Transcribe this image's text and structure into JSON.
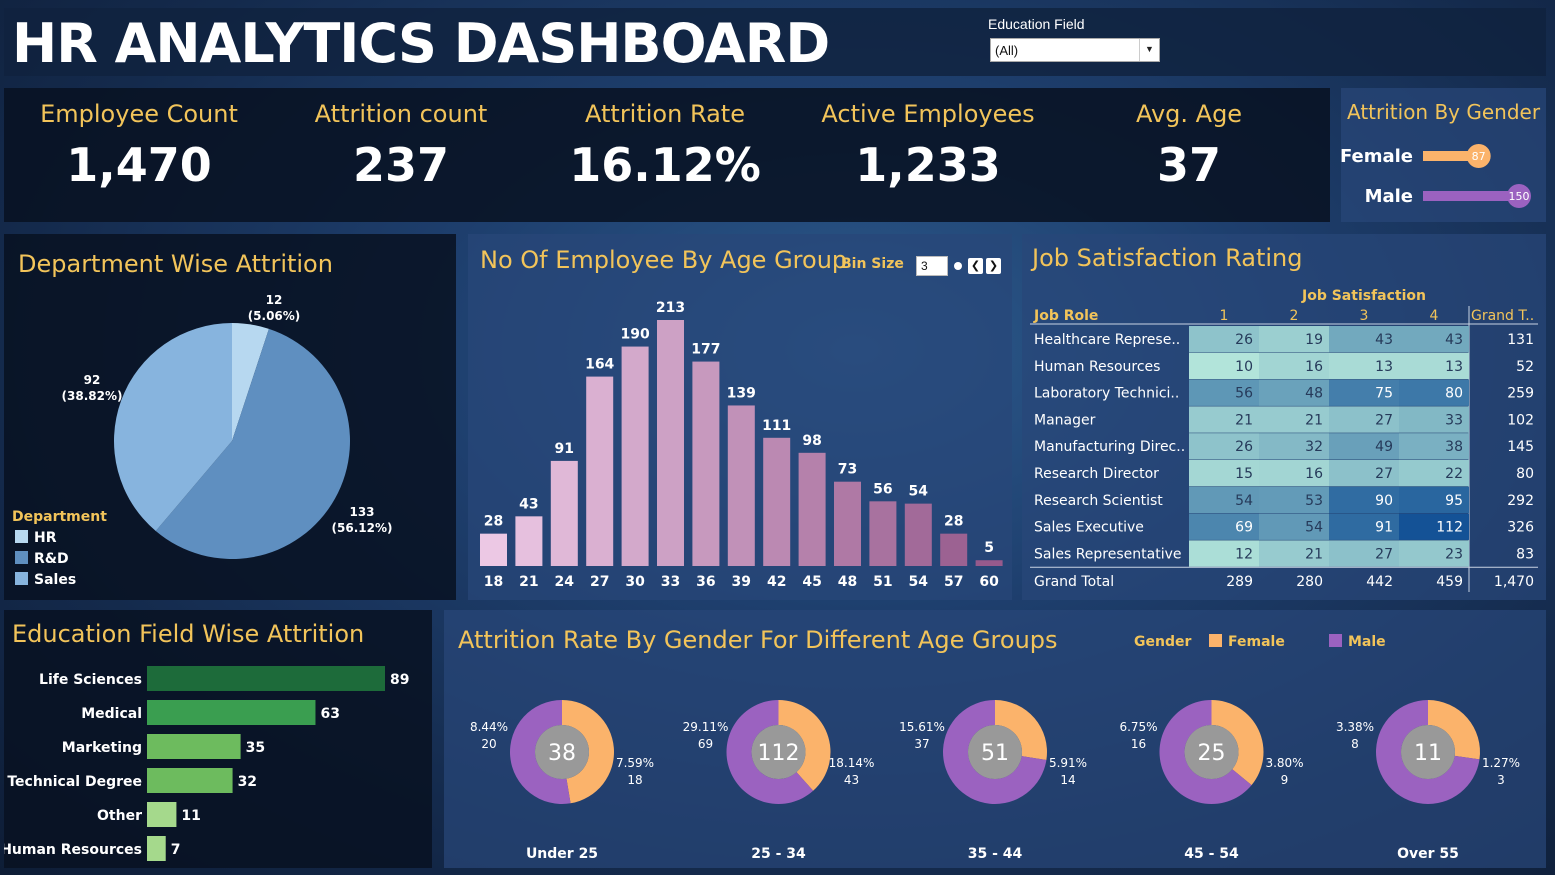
{
  "header": {
    "title": "HR ANALYTICS DASHBOARD",
    "filter_label": "Education Field",
    "filter_value": "(All)"
  },
  "kpis": [
    {
      "label": "Employee Count",
      "value": "1,470"
    },
    {
      "label": "Attrition count",
      "value": "237"
    },
    {
      "label": "Attrition Rate",
      "value": "16.12%"
    },
    {
      "label": "Active Employees",
      "value": "1,233"
    },
    {
      "label": "Avg. Age",
      "value": "37"
    }
  ],
  "colors": {
    "accent": "#f2c45a",
    "female": "#fbb36b",
    "male": "#9b62c0",
    "hr": "#b7d8f0",
    "rnd": "#5f8fc0",
    "sales": "#87b4de"
  },
  "chart_data": [
    {
      "id": "attrition-by-gender",
      "type": "bar",
      "title": "Attrition By Gender",
      "categories": [
        "Female",
        "Male"
      ],
      "values": [
        87,
        150
      ]
    },
    {
      "id": "department-wise-attrition",
      "type": "pie",
      "title": "Department Wise Attrition",
      "legend_title": "Department",
      "legend_position": "bottom-left",
      "slices": [
        {
          "name": "HR",
          "value": 12,
          "pct": "(5.06%)"
        },
        {
          "name": "R&D",
          "value": 133,
          "pct": "(56.12%)"
        },
        {
          "name": "Sales",
          "value": 92,
          "pct": "(38.82%)"
        }
      ]
    },
    {
      "id": "employees-by-age-group",
      "type": "bar",
      "title": "No Of Employee By Age Group",
      "control_label": "Bin Size",
      "control_value": "3",
      "categories": [
        "18",
        "21",
        "24",
        "27",
        "30",
        "33",
        "36",
        "39",
        "42",
        "45",
        "48",
        "51",
        "54",
        "57",
        "60"
      ],
      "values": [
        28,
        43,
        91,
        164,
        190,
        213,
        177,
        139,
        111,
        98,
        73,
        56,
        54,
        28,
        5
      ],
      "ylim": [
        0,
        213
      ]
    },
    {
      "id": "job-satisfaction-rating",
      "type": "heatmap",
      "title": "Job Satisfaction Rating",
      "col_group_label": "Job Satisfaction",
      "row_header": "Job Role",
      "columns": [
        "1",
        "2",
        "3",
        "4"
      ],
      "total_col_label": "Grand T..",
      "rows": [
        {
          "role": "Healthcare Represe..",
          "values": [
            26,
            19,
            43,
            43
          ],
          "total": "131"
        },
        {
          "role": "Human Resources",
          "values": [
            10,
            16,
            13,
            13
          ],
          "total": "52"
        },
        {
          "role": "Laboratory Technici..",
          "values": [
            56,
            48,
            75,
            80
          ],
          "total": "259"
        },
        {
          "role": "Manager",
          "values": [
            21,
            21,
            27,
            33
          ],
          "total": "102"
        },
        {
          "role": "Manufacturing Direc..",
          "values": [
            26,
            32,
            49,
            38
          ],
          "total": "145"
        },
        {
          "role": "Research Director",
          "values": [
            15,
            16,
            27,
            22
          ],
          "total": "80"
        },
        {
          "role": "Research Scientist",
          "values": [
            54,
            53,
            90,
            95
          ],
          "total": "292"
        },
        {
          "role": "Sales Executive",
          "values": [
            69,
            54,
            91,
            112
          ],
          "total": "326"
        },
        {
          "role": "Sales Representative",
          "values": [
            12,
            21,
            27,
            23
          ],
          "total": "83"
        }
      ],
      "grand_total": {
        "label": "Grand Total",
        "values": [
          "289",
          "280",
          "442",
          "459"
        ],
        "total": "1,470"
      }
    },
    {
      "id": "education-field-wise-attrition",
      "type": "bar",
      "title": "Education Field Wise Attrition",
      "categories": [
        "Life Sciences",
        "Medical",
        "Marketing",
        "Technical Degree",
        "Other",
        "Human Resources"
      ],
      "values": [
        89,
        63,
        35,
        32,
        11,
        7
      ],
      "colors": [
        "#1d6b3a",
        "#3a9e50",
        "#6dbb5e",
        "#6dbb5e",
        "#a5d98c",
        "#a5d98c"
      ]
    },
    {
      "id": "attrition-rate-by-gender-age",
      "type": "pie",
      "title": "Attrition Rate By Gender For Different Age Groups",
      "legend_title": "Gender",
      "legend": [
        "Female",
        "Male"
      ],
      "legend_position": "top-right",
      "groups": [
        {
          "label": "Under 25",
          "total": "38",
          "female": 18,
          "female_pct": "7.59%",
          "male": 20,
          "male_pct": "8.44%"
        },
        {
          "label": "25 - 34",
          "total": "112",
          "female": 43,
          "female_pct": "18.14%",
          "male": 69,
          "male_pct": "29.11%"
        },
        {
          "label": "35 - 44",
          "total": "51",
          "female": 14,
          "female_pct": "5.91%",
          "male": 37,
          "male_pct": "15.61%"
        },
        {
          "label": "45 - 54",
          "total": "25",
          "female": 9,
          "female_pct": "3.80%",
          "male": 16,
          "male_pct": "6.75%"
        },
        {
          "label": "Over 55",
          "total": "11",
          "female": 3,
          "female_pct": "1.27%",
          "male": 8,
          "male_pct": "3.38%"
        }
      ]
    }
  ]
}
